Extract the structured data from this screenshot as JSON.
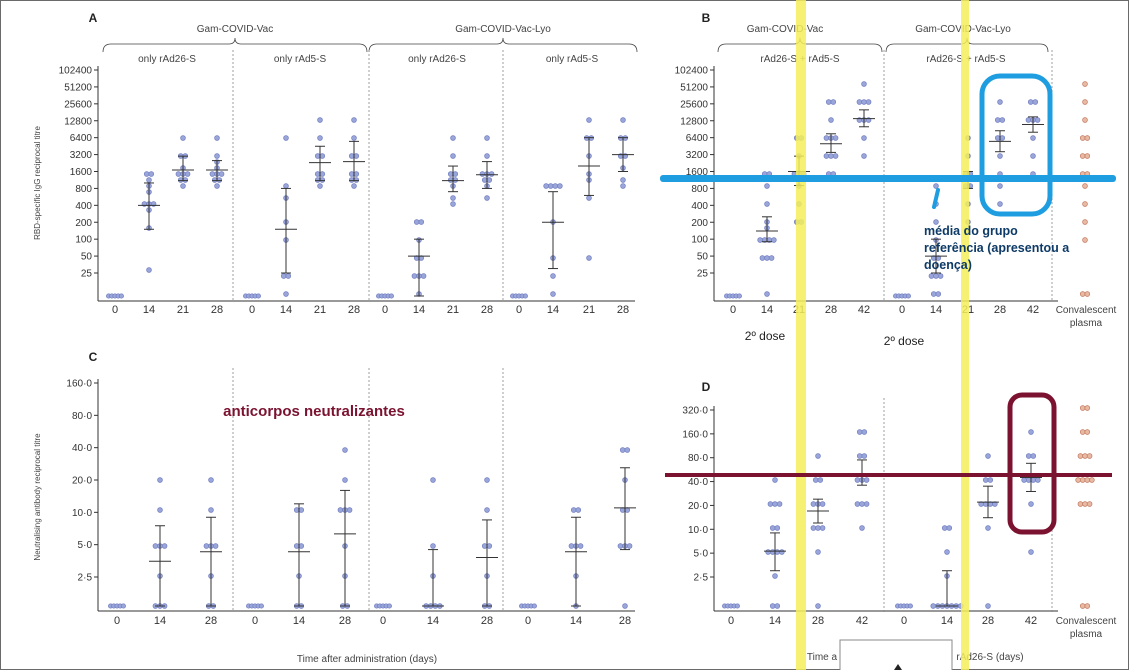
{
  "chart_data": [
    {
      "panel": "A",
      "type": "scatter",
      "ylabel": "RBD-specific IgG reciprocal titre",
      "yticks": [
        "25",
        "50",
        "100",
        "200",
        "400",
        "800",
        "1600",
        "3200",
        "6400",
        "12800",
        "25600",
        "51200",
        "102400"
      ],
      "groups": [
        {
          "label": "Gam-COVID-Vac",
          "subgroups": [
            {
              "label": "only rAd26-S",
              "x": [
                "0",
                "14",
                "21",
                "28"
              ],
              "values": [
                [],
                [
                  30,
                  150,
                  300,
                  400,
                  400,
                  400,
                  700,
                  800,
                  1000,
                  1600,
                  1600
                ],
                [
                  800,
                  1000,
                  1200,
                  1600,
                  1600,
                  1600,
                  2000,
                  3200,
                  3200,
                  6400
                ],
                [
                  800,
                  1000,
                  1200,
                  1600,
                  1600,
                  1600,
                  2000,
                  2400,
                  3200,
                  6400
                ]
              ],
              "gmt": [
                null,
                400,
                1700,
                1700
              ],
              "ci_low": [
                null,
                150,
                1100,
                1100
              ],
              "ci_high": [
                null,
                1000,
                3000,
                2500
              ]
            },
            {
              "label": "only rAd5-S",
              "x": [
                "0",
                "14",
                "21",
                "28"
              ],
              "values": [
                [],
                [
                  12,
                  25,
                  25,
                  100,
                  200,
                  500,
                  800,
                  6400
                ],
                [
                  800,
                  1000,
                  1200,
                  1600,
                  1600,
                  3200,
                  3200,
                  6400,
                  12800
                ],
                [
                  800,
                  1000,
                  1200,
                  1600,
                  1600,
                  3200,
                  3200,
                  6400,
                  12800
                ]
              ],
              "gmt": [
                null,
                150,
                2300,
                2400
              ],
              "ci_low": [
                null,
                25,
                1100,
                1100
              ],
              "ci_high": [
                null,
                800,
                4500,
                5500
              ]
            }
          ]
        },
        {
          "label": "Gam-COVID-Vac-Lyo",
          "subgroups": [
            {
              "label": "only rAd26-S",
              "x": [
                "0",
                "14",
                "21",
                "28"
              ],
              "values": [
                [],
                [
                  12,
                  25,
                  25,
                  25,
                  50,
                  50,
                  100,
                  200,
                  200
                ],
                [
                  400,
                  600,
                  800,
                  1000,
                  1200,
                  1600,
                  1600,
                  3200,
                  6400
                ],
                [
                  600,
                  800,
                  1000,
                  1200,
                  1600,
                  1600,
                  1600,
                  3200,
                  6400
                ]
              ],
              "gmt": [
                null,
                50,
                1100,
                1400
              ],
              "ci_low": [
                null,
                20,
                700,
                800
              ],
              "ci_high": [
                null,
                100,
                2000,
                2400
              ]
            },
            {
              "label": "only rAd5-S",
              "x": [
                "0",
                "14",
                "21",
                "28"
              ],
              "values": [
                [],
                [
                  12,
                  25,
                  50,
                  200,
                  800,
                  800,
                  800,
                  800
                ],
                [
                  50,
                  600,
                  1000,
                  1600,
                  3200,
                  6400,
                  6400,
                  12800
                ],
                [
                  800,
                  1000,
                  2000,
                  3200,
                  3200,
                  6400,
                  6400,
                  12800
                ]
              ],
              "gmt": [
                null,
                200,
                2000,
                3200
              ],
              "ci_low": [
                null,
                30,
                600,
                1600
              ],
              "ci_high": [
                null,
                700,
                6400,
                6400
              ]
            }
          ]
        }
      ]
    },
    {
      "panel": "B",
      "type": "scatter",
      "yticks": [
        "25",
        "50",
        "100",
        "200",
        "400",
        "800",
        "1600",
        "3200",
        "6400",
        "12800",
        "25600",
        "51200",
        "102400"
      ],
      "groups": [
        {
          "label": "Gam-COVID-Vac",
          "subgroups": [
            {
              "label": "rAd26-S + rAd5-S",
              "x": [
                "0",
                "14",
                "21",
                "28",
                "42"
              ],
              "values": [
                [],
                [
                  12,
                  50,
                  50,
                  50,
                  100,
                  100,
                  100,
                  100,
                  150,
                  200,
                  400,
                  800,
                  1600,
                  1600
                ],
                [
                  200,
                  200,
                  400,
                  800,
                  1600,
                  1600,
                  1600,
                  3200,
                  6400,
                  6400
                ],
                [
                  1600,
                  1600,
                  3200,
                  3200,
                  3200,
                  6400,
                  6400,
                  6400,
                  12800,
                  25600,
                  25600
                ],
                [
                  3200,
                  6400,
                  12800,
                  12800,
                  12800,
                  25600,
                  25600,
                  25600,
                  51200
                ]
              ],
              "gmt": [
                null,
                140,
                1600,
                5000,
                14000
              ],
              "ci_low": [
                null,
                90,
                900,
                3500,
                10000
              ],
              "ci_high": [
                null,
                250,
                3000,
                7500,
                20000
              ]
            }
          ]
        },
        {
          "label": "Gam-COVID-Vac-Lyo",
          "subgroups": [
            {
              "label": "rAd26-S + rAd5-S",
              "x": [
                "0",
                "14",
                "21",
                "28",
                "42"
              ],
              "values": [
                [],
                [
                  12,
                  12,
                  25,
                  25,
                  25,
                  50,
                  50,
                  100,
                  200,
                  400,
                  800
                ],
                [
                  200,
                  400,
                  800,
                  800,
                  1600,
                  1600,
                  3200,
                  6400
                ],
                [
                  400,
                  800,
                  1600,
                  3200,
                  6400,
                  6400,
                  12800,
                  12800,
                  25600
                ],
                [
                  1600,
                  3200,
                  6400,
                  12800,
                  12800,
                  12800,
                  25600,
                  25600
                ]
              ],
              "gmt": [
                null,
                50,
                1100,
                5500,
                11000
              ],
              "ci_low": [
                null,
                25,
                800,
                3600,
                8000
              ],
              "ci_high": [
                null,
                100,
                1600,
                8500,
                15000
              ]
            }
          ]
        }
      ],
      "convalescent": {
        "label": "Convalescent plasma",
        "values": [
          12,
          12,
          100,
          200,
          400,
          800,
          1600,
          1600,
          3200,
          3200,
          6400,
          6400,
          12800,
          25600,
          51200
        ]
      }
    },
    {
      "panel": "C",
      "type": "scatter",
      "ylabel": "Neutralising antibody reciprocal titre",
      "yticks": [
        "2·5",
        "5·0",
        "10·0",
        "20·0",
        "40·0",
        "80·0",
        "160·0"
      ],
      "xlabel": "Time after administration (days)",
      "groups": [
        {
          "label": "Gam-COVID-Vac",
          "subgroups": [
            {
              "x": [
                "0",
                "14",
                "28"
              ],
              "values": [
                [],
                [
                  1.25,
                  1.25,
                  1.25,
                  2.5,
                  5,
                  5,
                  5,
                  10,
                  20
                ],
                [
                  1.25,
                  1.25,
                  2.5,
                  5,
                  5,
                  5,
                  10,
                  20
                ]
              ],
              "gmt": [
                null,
                3.5,
                4.3
              ],
              "ci_low": [
                null,
                1.4,
                1.6
              ],
              "ci_high": [
                null,
                7.5,
                9
              ]
            },
            {
              "x": [
                "0",
                "14",
                "28"
              ],
              "values": [
                [],
                [
                  1.25,
                  1.25,
                  2.5,
                  5,
                  5,
                  10,
                  10
                ],
                [
                  1.25,
                  1.25,
                  2.5,
                  5,
                  10,
                  10,
                  10,
                  20,
                  40
                ]
              ],
              "gmt": [
                null,
                4.3,
                6.3
              ],
              "ci_low": [
                null,
                1.3,
                2.2
              ],
              "ci_high": [
                null,
                12,
                16
              ]
            }
          ]
        },
        {
          "label": "Gam-COVID-Vac-Lyo",
          "subgroups": [
            {
              "x": [
                "0",
                "14",
                "28"
              ],
              "values": [
                [],
                [
                  1.25,
                  1.25,
                  1.25,
                  1.25,
                  2.5,
                  5,
                  20
                ],
                [
                  1.25,
                  1.25,
                  2.5,
                  5,
                  5,
                  10,
                  20
                ]
              ],
              "gmt": [
                null,
                1.7,
                3.8
              ],
              "ci_low": [
                null,
                1.2,
                1.6
              ],
              "ci_high": [
                null,
                4.5,
                8.5
              ]
            },
            {
              "x": [
                "0",
                "14",
                "28"
              ],
              "values": [
                [],
                [
                  1.25,
                  2.5,
                  5,
                  5,
                  5,
                  10,
                  10
                ],
                [
                  1.25,
                  5,
                  5,
                  5,
                  10,
                  10,
                  20,
                  40,
                  40
                ]
              ],
              "gmt": [
                null,
                4.3,
                11
              ],
              "ci_low": [
                null,
                1.9,
                4.5
              ],
              "ci_high": [
                null,
                9,
                26
              ]
            }
          ]
        }
      ]
    },
    {
      "panel": "D",
      "type": "scatter",
      "yticks": [
        "2·5",
        "5·0",
        "10·0",
        "20·0",
        "40·0",
        "80·0",
        "160·0",
        "320·0"
      ],
      "groups": [
        {
          "subgroups": [
            {
              "x": [
                "0",
                "14",
                "28",
                "42"
              ],
              "values": [
                [],
                [
                  1.25,
                  1.25,
                  2.5,
                  5,
                  5,
                  5,
                  5,
                  10,
                  10,
                  20,
                  20,
                  20,
                  40
                ],
                [
                  1.25,
                  5,
                  10,
                  10,
                  10,
                  20,
                  20,
                  20,
                  40,
                  40,
                  80
                ],
                [
                  10,
                  20,
                  20,
                  20,
                  40,
                  40,
                  40,
                  80,
                  80,
                  160,
                  160
                ]
              ],
              "gmt": [
                null,
                5.3,
                17,
                50
              ],
              "ci_low": [
                null,
                3,
                12,
                36
              ],
              "ci_high": [
                null,
                9,
                24,
                75
              ]
            }
          ]
        },
        {
          "subgroups": [
            {
              "x": [
                "0",
                "14",
                "28",
                "42"
              ],
              "values": [
                [],
                [
                  1.25,
                  1.25,
                  1.25,
                  1.25,
                  1.25,
                  1.25,
                  1.25,
                  2.5,
                  5,
                  10,
                  10
                ],
                [
                  1.25,
                  10,
                  20,
                  20,
                  20,
                  20,
                  40,
                  40,
                  80
                ],
                [
                  5,
                  20,
                  40,
                  40,
                  40,
                  40,
                  80,
                  80,
                  160
                ]
              ],
              "gmt": [
                null,
                1.8,
                22,
                45
              ],
              "ci_low": [
                null,
                1.3,
                14,
                30
              ],
              "ci_high": [
                null,
                3,
                35,
                68
              ]
            }
          ]
        }
      ],
      "convalescent": {
        "label": "Convalescent plasma",
        "values": [
          1.25,
          1.25,
          20,
          20,
          20,
          40,
          40,
          40,
          40,
          80,
          80,
          80,
          160,
          160,
          320,
          320
        ]
      }
    }
  ],
  "panels": {
    "A": {
      "label": "A",
      "ylabel": "RBD-specific IgG reciprocal titre",
      "group1": "Gam-COVID-Vac",
      "group2": "Gam-COVID-Vac-Lyo",
      "sub1": "only rAd26-S",
      "sub2": "only rAd5-S",
      "sub3": "only rAd26-S",
      "sub4": "only rAd5-S"
    },
    "B": {
      "label": "B",
      "group1": "Gam-COVID-Vac",
      "group2": "Gam-COVID-Vac-Lyo",
      "sub1": "rAd26-S + rAd5-S",
      "sub2": "rAd26-S + rAd5-S",
      "conv1": "Convalescent",
      "conv2": "plasma"
    },
    "C": {
      "label": "C",
      "ylabel": "Neutralising antibody reciprocal titre",
      "xlabel": "Time after administration (days)"
    },
    "D": {
      "label": "D",
      "xlabel_fragment_left": "Time a",
      "xlabel_fragment_right": "rAd26-S (days)",
      "conv1": "Convalescent",
      "conv2": "plasma"
    }
  },
  "annotations": {
    "dose_left": "2º dose",
    "dose_right": "2º dose",
    "blue_note": [
      "média do grupo",
      "referência (apresentou a",
      "doença)"
    ],
    "red_note": "anticorpos neutralizantes",
    "colors": {
      "yellow": "#f5ef5a",
      "blue": "#1e9ee0",
      "maroon": "#7b1230"
    }
  }
}
